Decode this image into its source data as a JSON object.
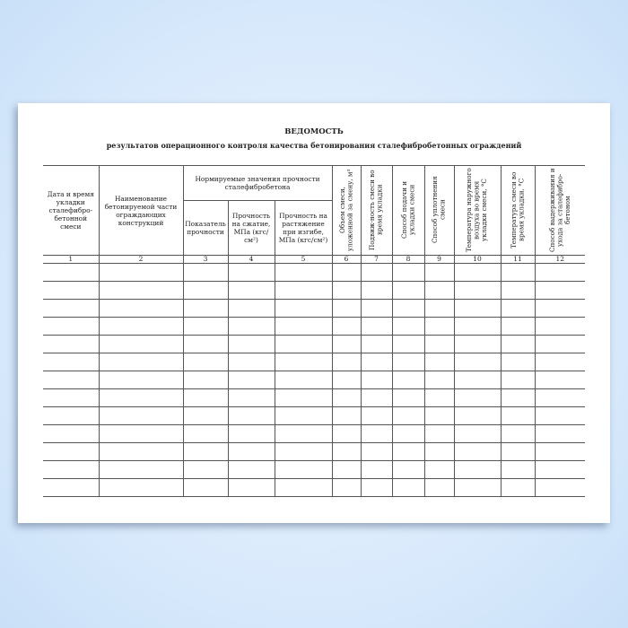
{
  "document": {
    "title": "ВЕДОМОСТЬ",
    "subtitle": "результатов операционного контроля качества бетонирования сталефибробетонных ограждений",
    "columns": {
      "c1": "Дата и время укладки сталефибро-бетонной смеси",
      "c2": "Наименование бетонируемой части ограждающих конструкций",
      "group": "Нормируемые значения прочности сталефибробетона",
      "c3": "Показатель прочности",
      "c4": "Прочность на сжатие, МПа (кгс/см²)",
      "c5": "Прочность на растяжение при изгибе, МПа (кгс/см²)",
      "c6": "Объем смеси, уложенной за смену, м³",
      "c7": "Подвиж-ность смеси во время укладки",
      "c8": "Способ подачи и укладки смеси",
      "c9": "Способ уплотнения смеси",
      "c10": "Температура наружного воздуха во время укладки смеси, °С",
      "c11": "Температура смеси во время укладки, °С",
      "c12": "Способ выдерживания и ухода за сталефибро-бетоном"
    },
    "column_numbers": [
      "1",
      "2",
      "3",
      "4",
      "5",
      "6",
      "7",
      "8",
      "9",
      "10",
      "11",
      "12"
    ],
    "empty_rows": 13
  }
}
